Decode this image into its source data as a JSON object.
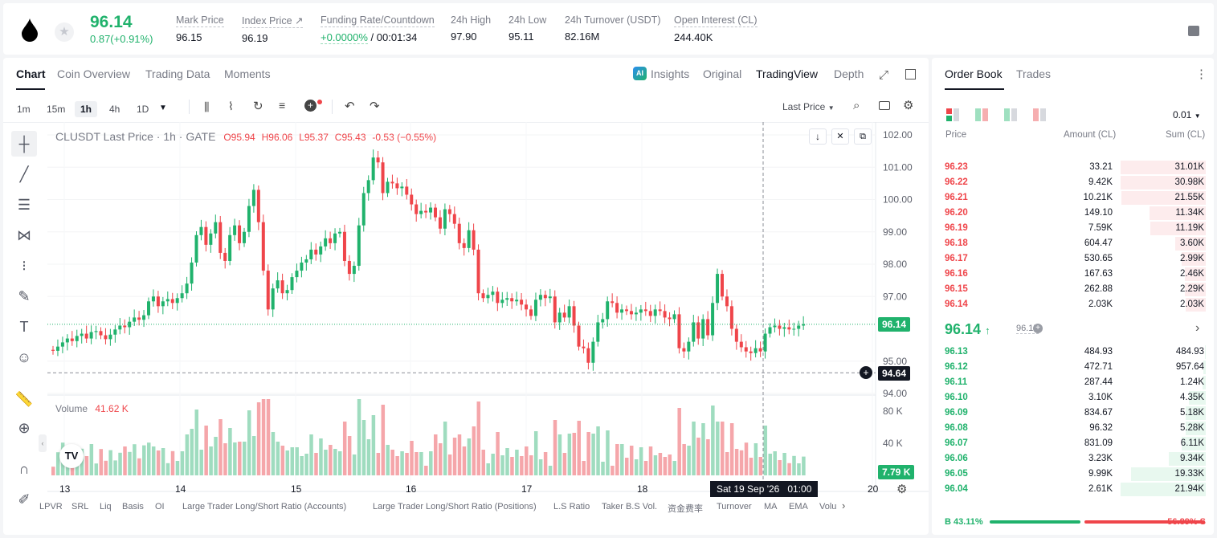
{
  "header": {
    "last_price": "96.14",
    "change": "0.87(+0.91%)",
    "stats": [
      {
        "label": "Mark Price",
        "value": "96.15"
      },
      {
        "label": "Index Price ↗",
        "value": "96.19"
      },
      {
        "label": "Funding Rate/Countdown",
        "value_a": "+0.0000%",
        "value_b": "/ 00:01:34"
      },
      {
        "label": "24h High",
        "value": "97.90"
      },
      {
        "label": "24h Low",
        "value": "95.11"
      },
      {
        "label": "24h Turnover (USDT)",
        "value": "82.16M"
      },
      {
        "label": "Open Interest (CL)",
        "value": "244.40K"
      }
    ]
  },
  "chart_tabs": [
    "Chart",
    "Coin Overview",
    "Trading Data",
    "Moments"
  ],
  "view_tabs": {
    "insights": "Insights",
    "original": "Original",
    "tradingview": "TradingView",
    "depth": "Depth"
  },
  "timeframes": [
    "1m",
    "15m",
    "1h",
    "4h",
    "1D"
  ],
  "price_type": "Last Price",
  "legend": {
    "symbol": "CLUSDT Last Price · 1h · GATE",
    "o": "95.94",
    "h": "96.06",
    "l": "95.37",
    "c": "95.43",
    "chg": "-0.53 (−0.55%)"
  },
  "volume_legend": {
    "label": "Volume",
    "value": "41.62 K"
  },
  "price_axis": [
    "102.00",
    "101.00",
    "100.00",
    "99.00",
    "98.00",
    "97.00",
    "95.00",
    "94.00"
  ],
  "current_price_tag": "96.14",
  "crosshair_price_tag": "94.64",
  "volume_axis": [
    "80 K",
    "40 K"
  ],
  "volume_tag": "7.79 K",
  "time_axis": [
    "13",
    "14",
    "15",
    "16",
    "17",
    "18",
    "20"
  ],
  "crosshair_time": "Sat 19 Sep '26   01:00",
  "bottom_tabs": [
    "LPVR",
    "SRL",
    "Liq",
    "Basis",
    "OI",
    "Large Trader Long/Short Ratio (Accounts)",
    "Large Trader Long/Short Ratio (Positions)",
    "L.S Ratio",
    "Taker B.S Vol.",
    "资金费率",
    "Turnover",
    "MA",
    "EMA",
    "Volu"
  ],
  "orderbook": {
    "tabs": [
      "Order Book",
      "Trades"
    ],
    "precision": "0.01",
    "headers": [
      "Price",
      "Amount (CL)",
      "Sum (CL)"
    ],
    "asks": [
      {
        "price": "96.23",
        "amount": "33.21",
        "sum": "31.01K",
        "depth": 1.0
      },
      {
        "price": "96.22",
        "amount": "9.42K",
        "sum": "30.98K",
        "depth": 1.0
      },
      {
        "price": "96.21",
        "amount": "10.21K",
        "sum": "21.55K",
        "depth": 0.99
      },
      {
        "price": "96.20",
        "amount": "149.10",
        "sum": "11.34K",
        "depth": 0.66
      },
      {
        "price": "96.19",
        "amount": "7.59K",
        "sum": "11.19K",
        "depth": 0.65
      },
      {
        "price": "96.18",
        "amount": "604.47",
        "sum": "3.60K",
        "depth": 0.36
      },
      {
        "price": "96.17",
        "amount": "530.65",
        "sum": "2.99K",
        "depth": 0.28
      },
      {
        "price": "96.16",
        "amount": "167.63",
        "sum": "2.46K",
        "depth": 0.25
      },
      {
        "price": "96.15",
        "amount": "262.88",
        "sum": "2.29K",
        "depth": 0.25
      },
      {
        "price": "96.14",
        "amount": "2.03K",
        "sum": "2.03K",
        "depth": 0.24
      }
    ],
    "mid_price": "96.14",
    "mid_mark": "96.15",
    "bids": [
      {
        "price": "96.13",
        "amount": "484.93",
        "sum": "484.93",
        "depth": 0.01
      },
      {
        "price": "96.12",
        "amount": "472.71",
        "sum": "957.64",
        "depth": 0.03
      },
      {
        "price": "96.11",
        "amount": "287.44",
        "sum": "1.24K",
        "depth": 0.04
      },
      {
        "price": "96.10",
        "amount": "3.10K",
        "sum": "4.35K",
        "depth": 0.2
      },
      {
        "price": "96.09",
        "amount": "834.67",
        "sum": "5.18K",
        "depth": 0.24
      },
      {
        "price": "96.08",
        "amount": "96.32",
        "sum": "5.28K",
        "depth": 0.24
      },
      {
        "price": "96.07",
        "amount": "831.09",
        "sum": "6.11K",
        "depth": 0.28
      },
      {
        "price": "96.06",
        "amount": "3.23K",
        "sum": "9.34K",
        "depth": 0.43
      },
      {
        "price": "96.05",
        "amount": "9.99K",
        "sum": "19.33K",
        "depth": 0.88
      },
      {
        "price": "96.04",
        "amount": "2.61K",
        "sum": "21.94K",
        "depth": 1.0
      }
    ],
    "buy_ratio": "B 43.11%",
    "sell_ratio": "56.89% S",
    "buy_pct": 43.11
  },
  "chart_data": {
    "type": "candlestick",
    "symbol": "CLUSDT",
    "interval": "1h",
    "ylim": [
      94.0,
      102.0
    ],
    "volume_ylim": [
      0,
      100000
    ],
    "x_labels": [
      "13",
      "14",
      "15",
      "16",
      "17",
      "18",
      "20"
    ],
    "closes": [
      95.32,
      95.45,
      95.58,
      95.7,
      95.62,
      95.78,
      95.85,
      95.7,
      95.9,
      95.93,
      95.8,
      95.68,
      95.82,
      95.98,
      96.1,
      96.05,
      96.22,
      96.35,
      96.28,
      96.42,
      96.85,
      97.0,
      96.7,
      96.85,
      96.92,
      96.8,
      96.95,
      97.1,
      97.4,
      98.05,
      98.9,
      99.15,
      98.6,
      98.95,
      99.3,
      98.35,
      98.1,
      98.9,
      99.2,
      98.65,
      99.0,
      99.8,
      100.3,
      99.3,
      97.8,
      96.6,
      97.25,
      97.5,
      97.1,
      97.2,
      97.6,
      97.8,
      98.05,
      98.15,
      98.45,
      98.3,
      98.55,
      98.8,
      98.65,
      98.95,
      99.0,
      98.1,
      97.7,
      97.95,
      99.2,
      100.2,
      100.6,
      101.3,
      101.15,
      100.2,
      100.55,
      100.5,
      100.35,
      100.4,
      100.15,
      99.85,
      99.55,
      99.65,
      99.6,
      99.75,
      99.45,
      99.1,
      99.7,
      99.55,
      99.25,
      98.65,
      98.5,
      99.05,
      98.45,
      97.1,
      96.95,
      97.05,
      97.15,
      96.8,
      96.9,
      96.95,
      96.85,
      96.9,
      96.75,
      96.6,
      96.4,
      96.9,
      97.05,
      96.95,
      97.0,
      96.2,
      96.5,
      96.35,
      96.7,
      96.1,
      95.45,
      95.4,
      94.95,
      95.6,
      96.2,
      96.3,
      96.85,
      96.8,
      96.5,
      96.6,
      96.55,
      96.45,
      96.5,
      96.6,
      96.55,
      96.4,
      96.6,
      96.55,
      96.35,
      96.3,
      96.45,
      95.4,
      95.3,
      95.6,
      96.2,
      95.7,
      96.3,
      95.8,
      96.8,
      97.7,
      97.0,
      96.7,
      96.0,
      95.6,
      95.43,
      95.3,
      95.25,
      95.4,
      95.3,
      95.85,
      96.05,
      96.1,
      96.0,
      96.05,
      95.98,
      96.0,
      96.1,
      96.14
    ],
    "price_tag": 96.14,
    "crosshair_price": 94.64
  }
}
